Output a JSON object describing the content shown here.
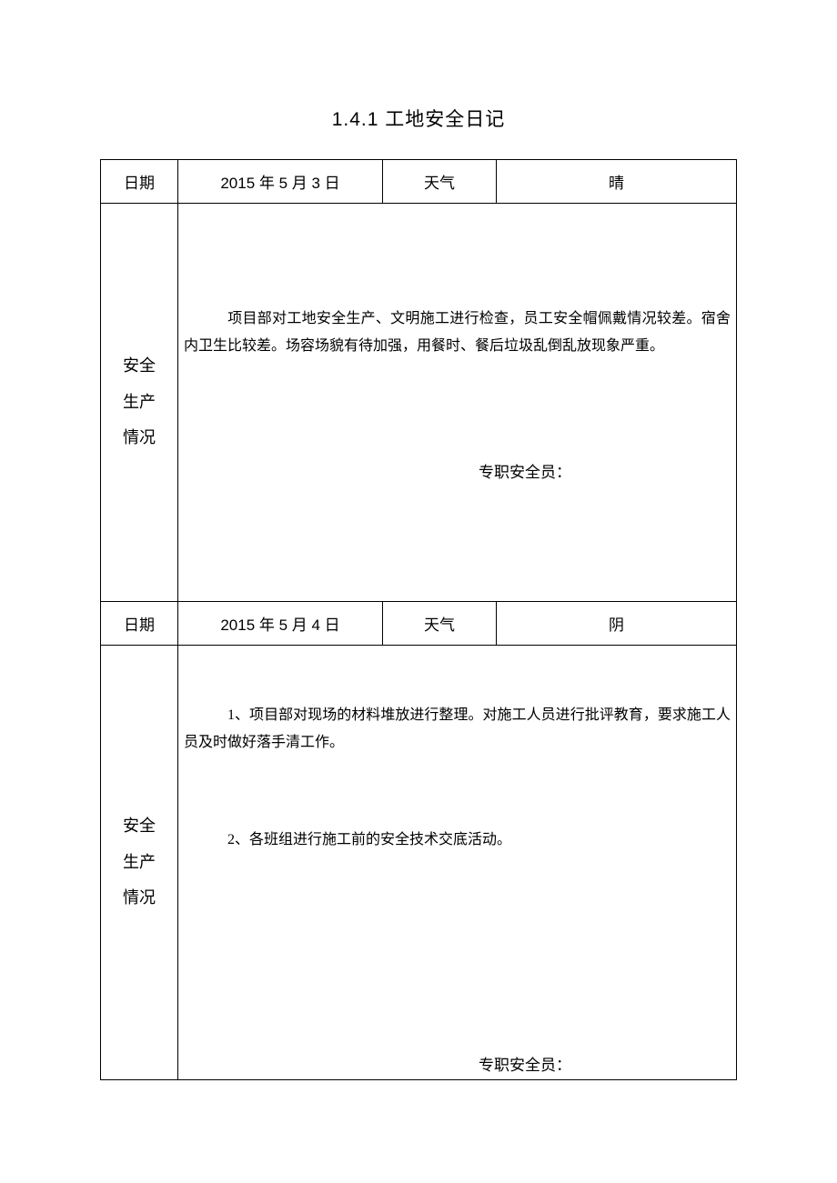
{
  "document": {
    "title": "1.4.1 工地安全日记",
    "text_color": "#000000",
    "border_color": "#000000",
    "background_color": "#ffffff",
    "title_fontsize": 21,
    "body_fontsize": 16,
    "label_fontsize": 17,
    "font_family": "SimSun"
  },
  "labels": {
    "date": "日期",
    "weather": "天气",
    "side": "安全生产情况",
    "signature": "专职安全员："
  },
  "entries": [
    {
      "date": "2015 年 5 月 3 日",
      "weather": "晴",
      "paragraphs": [
        "项目部对工地安全生产、文明施工进行检查，员工安全帽佩戴情况较差。宿舍内卫生比较差。场容场貌有待加强，用餐时、餐后垃圾乱倒乱放现象严重。"
      ]
    },
    {
      "date": "2015 年 5 月 4 日",
      "weather": "阴",
      "paragraphs": [
        "1、项目部对现场的材料堆放进行整理。对施工人员进行批评教育，要求施工人员及时做好落手清工作。",
        "2、各班组进行施工前的安全技术交底活动。"
      ]
    }
  ]
}
